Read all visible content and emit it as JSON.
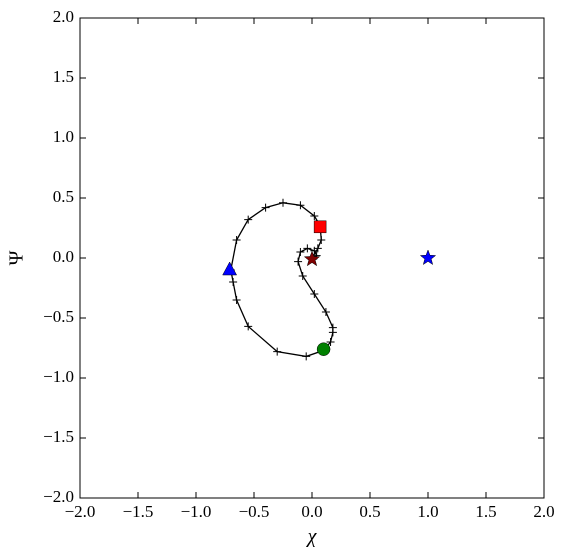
{
  "chart_data": {
    "type": "line",
    "xlabel": "χ",
    "ylabel": "Ψ",
    "xlim": [
      -2.0,
      2.0
    ],
    "ylim": [
      -2.0,
      2.0
    ],
    "xticks": [
      {
        "value": -2.0,
        "label": "−2.0"
      },
      {
        "value": -1.5,
        "label": "−1.5"
      },
      {
        "value": -1.0,
        "label": "−1.0"
      },
      {
        "value": -0.5,
        "label": "−0.5"
      },
      {
        "value": 0.0,
        "label": "0.0"
      },
      0.5,
      {
        "value": 1.0,
        "label": "1.0"
      },
      1.5,
      {
        "value": 2.0,
        "label": "2.0"
      }
    ],
    "yticks": [
      {
        "value": -2.0,
        "label": "−2.0"
      },
      {
        "value": -1.5,
        "label": "−1.5"
      },
      {
        "value": -1.0,
        "label": "−1.0"
      },
      {
        "value": -0.5,
        "label": "−0.5"
      },
      {
        "value": 0.0,
        "label": "0.0"
      },
      0.5,
      {
        "value": 1.0,
        "label": "1.0"
      },
      1.5,
      {
        "value": 2.0,
        "label": "2.0"
      }
    ],
    "grid": false,
    "series": [
      {
        "color": "#000000",
        "x": [
          0.0,
          0.05,
          0.08,
          0.07,
          0.02,
          -0.1,
          -0.25,
          -0.4,
          -0.55,
          -0.65,
          -0.7,
          -0.68,
          -0.65,
          -0.55,
          -0.3,
          -0.05,
          0.1,
          0.16,
          0.18,
          0.18,
          0.12,
          0.02,
          -0.08,
          -0.12,
          -0.1,
          -0.04,
          0.02,
          0.04,
          0.0
        ],
        "values": [
          0.0,
          0.08,
          0.15,
          0.27,
          0.35,
          0.44,
          0.46,
          0.42,
          0.32,
          0.15,
          -0.1,
          -0.2,
          -0.35,
          -0.57,
          -0.78,
          -0.82,
          -0.77,
          -0.7,
          -0.62,
          -0.58,
          -0.45,
          -0.3,
          -0.15,
          -0.03,
          0.05,
          0.08,
          0.06,
          0.02,
          0.0
        ]
      }
    ],
    "markers": [
      {
        "marker": "square",
        "color": "#ff0000",
        "x": 0.07,
        "y": 0.26
      },
      {
        "marker": "triangle",
        "color": "#0000ff",
        "x": -0.71,
        "y": -0.1
      },
      {
        "marker": "circle",
        "color": "#008000",
        "x": 0.1,
        "y": -0.76
      },
      {
        "marker": "star",
        "color": "#0000ff",
        "x": 1.0,
        "y": 0.0
      },
      {
        "marker": "star",
        "color": "#800000",
        "x": 0.0,
        "y": -0.01
      }
    ]
  }
}
